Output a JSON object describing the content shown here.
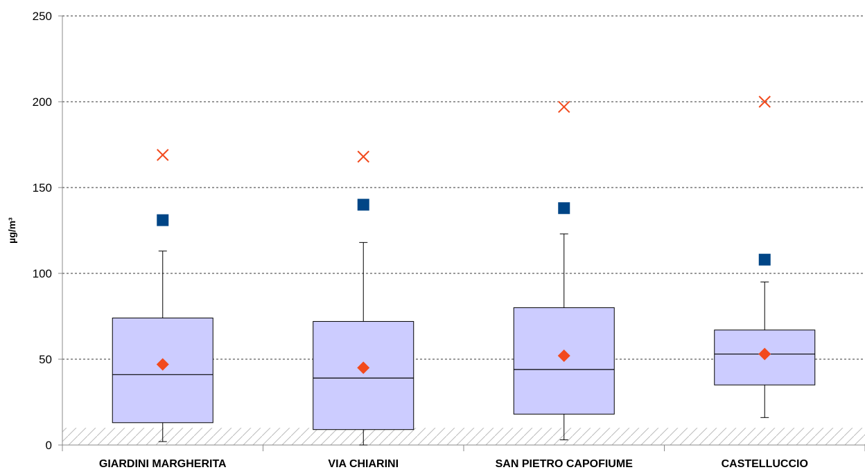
{
  "chart_data": {
    "type": "boxplot",
    "title": "",
    "xlabel": "",
    "ylabel": "µg/m³",
    "ylim": [
      0,
      250
    ],
    "yticks": [
      0,
      50,
      100,
      150,
      200,
      250
    ],
    "grid": true,
    "grid_style": "dashed horizontal",
    "shaded_band": {
      "y_from": 0,
      "y_to": 10,
      "pattern": "diagonal hatch"
    },
    "categories": [
      "GIARDINI MARGHERITA",
      "VIA CHIARINI",
      "SAN PIETRO CAPOFIUME",
      "CASTELLUCCIO"
    ],
    "boxes": [
      {
        "min": 2,
        "q1": 13,
        "median": 41,
        "q3": 74,
        "max": 113
      },
      {
        "min": 0,
        "q1": 9,
        "median": 39,
        "q3": 72,
        "max": 118
      },
      {
        "min": 3,
        "q1": 18,
        "median": 44,
        "q3": 80,
        "max": 123
      },
      {
        "min": 16,
        "q1": 35,
        "median": 53,
        "q3": 67,
        "max": 95
      }
    ],
    "markers": {
      "mean": {
        "shape": "diamond",
        "color": "#F24A1D",
        "values": [
          47,
          45,
          52,
          53
        ]
      },
      "square": {
        "shape": "square",
        "color": "#004586",
        "values": [
          131,
          140,
          138,
          108
        ]
      },
      "cross": {
        "shape": "x",
        "color": "#F24A1D",
        "values": [
          169,
          168,
          197,
          200
        ]
      }
    },
    "colors": {
      "box_fill": "#CCCCFF",
      "box_stroke": "#000000",
      "grid": "#333333",
      "hatch": "#BBBBBB"
    }
  }
}
